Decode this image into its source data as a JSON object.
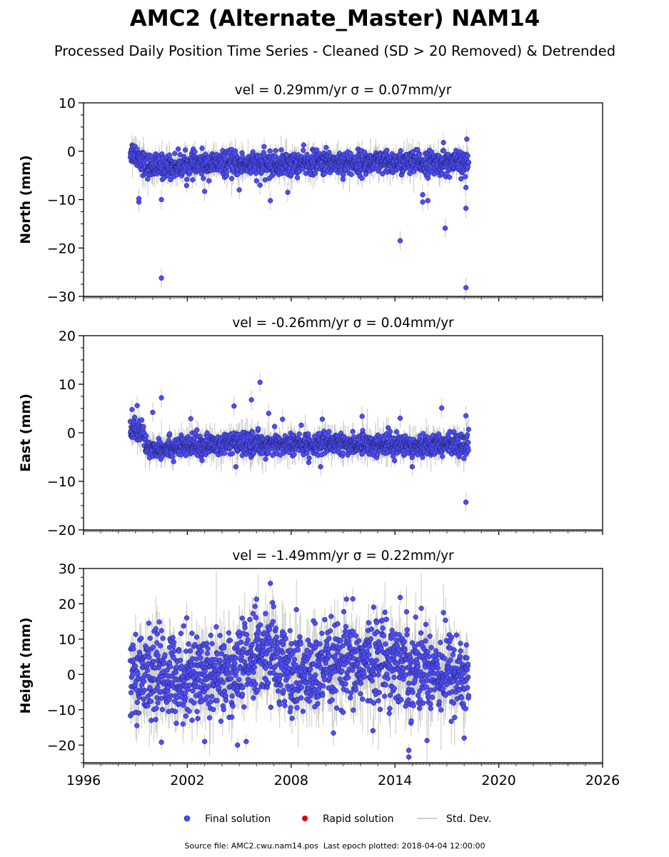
{
  "title": "AMC2 (Alternate_Master) NAM14",
  "subtitle": "Processed Daily Position Time Series - Cleaned (SD > 20 Removed) & Detrended",
  "footer": {
    "source_label": "Source file: AMC2.cwu.nam14.pos",
    "last_epoch_label": "Last epoch plotted: 2018-04-04 12:00:00"
  },
  "legend": [
    {
      "label": "Final solution",
      "marker": "dot",
      "color": "#4d4dff"
    },
    {
      "label": "Rapid solution",
      "marker": "dot",
      "color": "#e00000"
    },
    {
      "label": "Std. Dev.",
      "marker": "line",
      "color": "#d0d0d0"
    }
  ],
  "colors": {
    "final": "#4d4dff",
    "rapid": "#e00000",
    "stddev": "#c8c8c8",
    "edge": "#1a1a40"
  },
  "chart_data": [
    {
      "type": "scatter",
      "panel_title": "vel = 0.29mm/yr   σ = 0.07mm/yr",
      "ylabel": "North (mm)",
      "xlim": [
        1996,
        2026
      ],
      "ylim": [
        -30,
        10
      ],
      "yticks": [
        10,
        0,
        -10,
        -20,
        -30
      ],
      "xticks": [
        1996,
        2002,
        2008,
        2014,
        2020,
        2026
      ],
      "data_range": [
        1998.7,
        2018.26
      ],
      "series": [
        {
          "name": "Final solution",
          "trend": [
            [
              1998.7,
              0
            ],
            [
              1999.2,
              -1
            ],
            [
              1999.6,
              -3
            ],
            [
              2000.5,
              -3.2
            ],
            [
              2004,
              -2.5
            ],
            [
              2007,
              -2.8
            ],
            [
              2010,
              -2.3
            ],
            [
              2013,
              -2.5
            ],
            [
              2016,
              -2.4
            ],
            [
              2018.26,
              -2.6
            ]
          ],
          "scatter_sd": 1.2,
          "err_sd": 1.2,
          "outliers": [
            [
              2000.5,
              -26.2
            ],
            [
              2000.5,
              -10
            ],
            [
              1999.2,
              -10.5
            ],
            [
              1999.2,
              -9.8
            ],
            [
              2003,
              -8.3
            ],
            [
              2005,
              -8
            ],
            [
              2006.8,
              -10.2
            ],
            [
              2006.2,
              -7
            ],
            [
              2007.8,
              -8.5
            ],
            [
              2014.3,
              -18.5
            ],
            [
              2016.9,
              -15.9
            ],
            [
              2015.6,
              -10.5
            ],
            [
              2015.6,
              -9
            ],
            [
              2015.9,
              -10.2
            ],
            [
              2018.1,
              -28.2
            ],
            [
              2018.1,
              -11.8
            ],
            [
              2018.1,
              -7.5
            ],
            [
              2018.15,
              2.5
            ],
            [
              2016.8,
              1.8
            ]
          ]
        }
      ]
    },
    {
      "type": "scatter",
      "panel_title": "vel = -0.26mm/yr   σ = 0.04mm/yr",
      "ylabel": "East (mm)",
      "xlim": [
        1996,
        2026
      ],
      "ylim": [
        -20,
        20
      ],
      "yticks": [
        20,
        10,
        0,
        -10,
        -20
      ],
      "xticks": [
        1996,
        2002,
        2008,
        2014,
        2020,
        2026
      ],
      "data_range": [
        1998.7,
        2018.26
      ],
      "series": [
        {
          "name": "Final solution",
          "trend": [
            [
              1998.7,
              0.5
            ],
            [
              1999.4,
              0
            ],
            [
              1999.7,
              -3.2
            ],
            [
              2002,
              -2.8
            ],
            [
              2005,
              -2.2
            ],
            [
              2008,
              -2.4
            ],
            [
              2011,
              -2.3
            ],
            [
              2014,
              -2.5
            ],
            [
              2018.26,
              -2.3
            ]
          ],
          "scatter_sd": 1.1,
          "err_sd": 1.3,
          "outliers": [
            [
              1998.8,
              4.8
            ],
            [
              1999.1,
              5.6
            ],
            [
              2000.5,
              7.2
            ],
            [
              2000,
              4.2
            ],
            [
              2002.2,
              2.9
            ],
            [
              2004.7,
              5.5
            ],
            [
              2005.7,
              6.8
            ],
            [
              2006.2,
              10.4
            ],
            [
              2006.7,
              4
            ],
            [
              2007.5,
              2.8
            ],
            [
              2009.8,
              2.8
            ],
            [
              2012.1,
              3.4
            ],
            [
              2014.3,
              3
            ],
            [
              2016.7,
              5.1
            ],
            [
              2018.1,
              3.5
            ],
            [
              2018.1,
              -14.3
            ],
            [
              2004.8,
              -7
            ],
            [
              2009.7,
              -7
            ],
            [
              2015,
              -7
            ]
          ]
        }
      ]
    },
    {
      "type": "scatter",
      "panel_title": "vel = -1.49mm/yr   σ = 0.22mm/yr",
      "ylabel": "Height (mm)",
      "xlim": [
        1996,
        2026
      ],
      "ylim": [
        -25,
        30
      ],
      "yticks": [
        30,
        20,
        10,
        0,
        -10,
        -20
      ],
      "xticks": [
        1996,
        2002,
        2008,
        2014,
        2020,
        2026
      ],
      "data_range": [
        1998.7,
        2018.26
      ],
      "series": [
        {
          "name": "Final solution",
          "trend": [
            [
              1998.7,
              0
            ],
            [
              2002,
              0
            ],
            [
              2005,
              1
            ],
            [
              2006.2,
              6
            ],
            [
              2007,
              5
            ],
            [
              2008,
              0
            ],
            [
              2010,
              1
            ],
            [
              2012,
              3
            ],
            [
              2013.5,
              5
            ],
            [
              2015,
              2
            ],
            [
              2017,
              1
            ],
            [
              2018.26,
              -1
            ]
          ],
          "scatter_sd": 6,
          "err_sd": 4,
          "outliers": [
            [
              2006.8,
              25.8
            ],
            [
              2006,
              21.3
            ],
            [
              2011.2,
              21.3
            ],
            [
              2014.3,
              21.8
            ],
            [
              2014.8,
              -21.5
            ],
            [
              2014.8,
              -23.4
            ],
            [
              2004.9,
              -20
            ],
            [
              2005.4,
              -19
            ],
            [
              2000.5,
              -19.2
            ],
            [
              2003,
              -19
            ],
            [
              2018,
              -18
            ]
          ]
        }
      ]
    }
  ]
}
